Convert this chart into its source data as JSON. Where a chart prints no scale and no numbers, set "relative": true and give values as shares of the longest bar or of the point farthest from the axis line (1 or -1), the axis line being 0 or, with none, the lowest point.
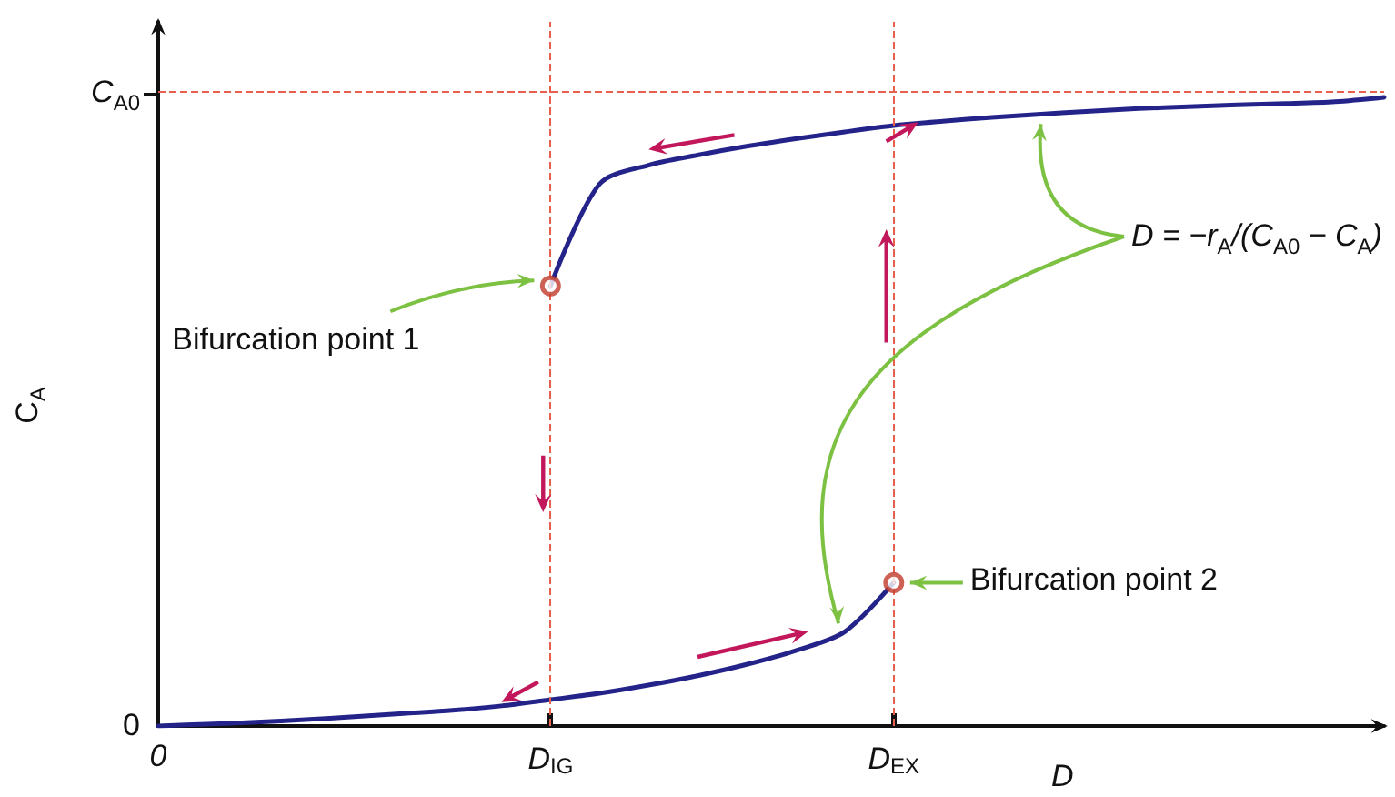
{
  "chart_data": {
    "type": "line",
    "relative": true,
    "xlabel": "D",
    "ylabel": "C$_{A}$",
    "categories": [
      "0",
      null,
      null,
      null,
      null,
      null,
      null,
      null,
      "D$_{IG}$",
      null,
      null,
      null,
      null,
      null,
      null,
      "D$_{EX}$",
      null,
      null,
      null,
      null,
      null,
      null,
      null,
      null,
      null,
      null
    ],
    "series": [
      {
        "color": "#23238a",
        "values": [
          null,
          null,
          null,
          null,
          null,
          null,
          null,
          null,
          0.7,
          0.862,
          0.892,
          0.908,
          0.922,
          0.934,
          0.945,
          0.955,
          0.962,
          0.968,
          0.973,
          0.978,
          0.982,
          0.985,
          0.988,
          0.99,
          0.993,
          1.0
        ]
      },
      {
        "color": "#23238a",
        "values": [
          0,
          0.003,
          0.006,
          0.01,
          0.015,
          0.02,
          0.025,
          0.032,
          0.042,
          0.052,
          0.065,
          0.08,
          0.098,
          0.12,
          0.15,
          0.228,
          null,
          null,
          null,
          null,
          null,
          null,
          null,
          null,
          null,
          null
        ]
      },
      {
        "type": "scatter",
        "color": "#c0392b",
        "marker": "circle",
        "values": [
          null,
          null,
          null,
          null,
          null,
          null,
          null,
          null,
          0.7,
          null,
          null,
          null,
          null,
          null,
          null,
          0.228,
          null,
          null,
          null,
          null,
          null,
          null,
          null,
          null,
          null,
          null
        ]
      }
    ],
    "marker": "none",
    "line_style": "solid",
    "ref_lines": [
      {
        "axis": "y",
        "value": 1.006,
        "color": "#e8604c",
        "line_style": "dashed"
      },
      {
        "axis": "x",
        "value": "D$_{IG}$",
        "color": "#e8604c",
        "line_style": "dashed"
      },
      {
        "axis": "x",
        "value": "D$_{EX}$",
        "color": "#e8604c",
        "line_style": "dashed"
      }
    ],
    "annotations": [
      "Bifurcation point 1",
      "Bifurcation point 2",
      "D = −r$_{A}$/(C$_{A0}$ − C$_{A}$)",
      "0",
      "C$_{A0}$"
    ]
  }
}
